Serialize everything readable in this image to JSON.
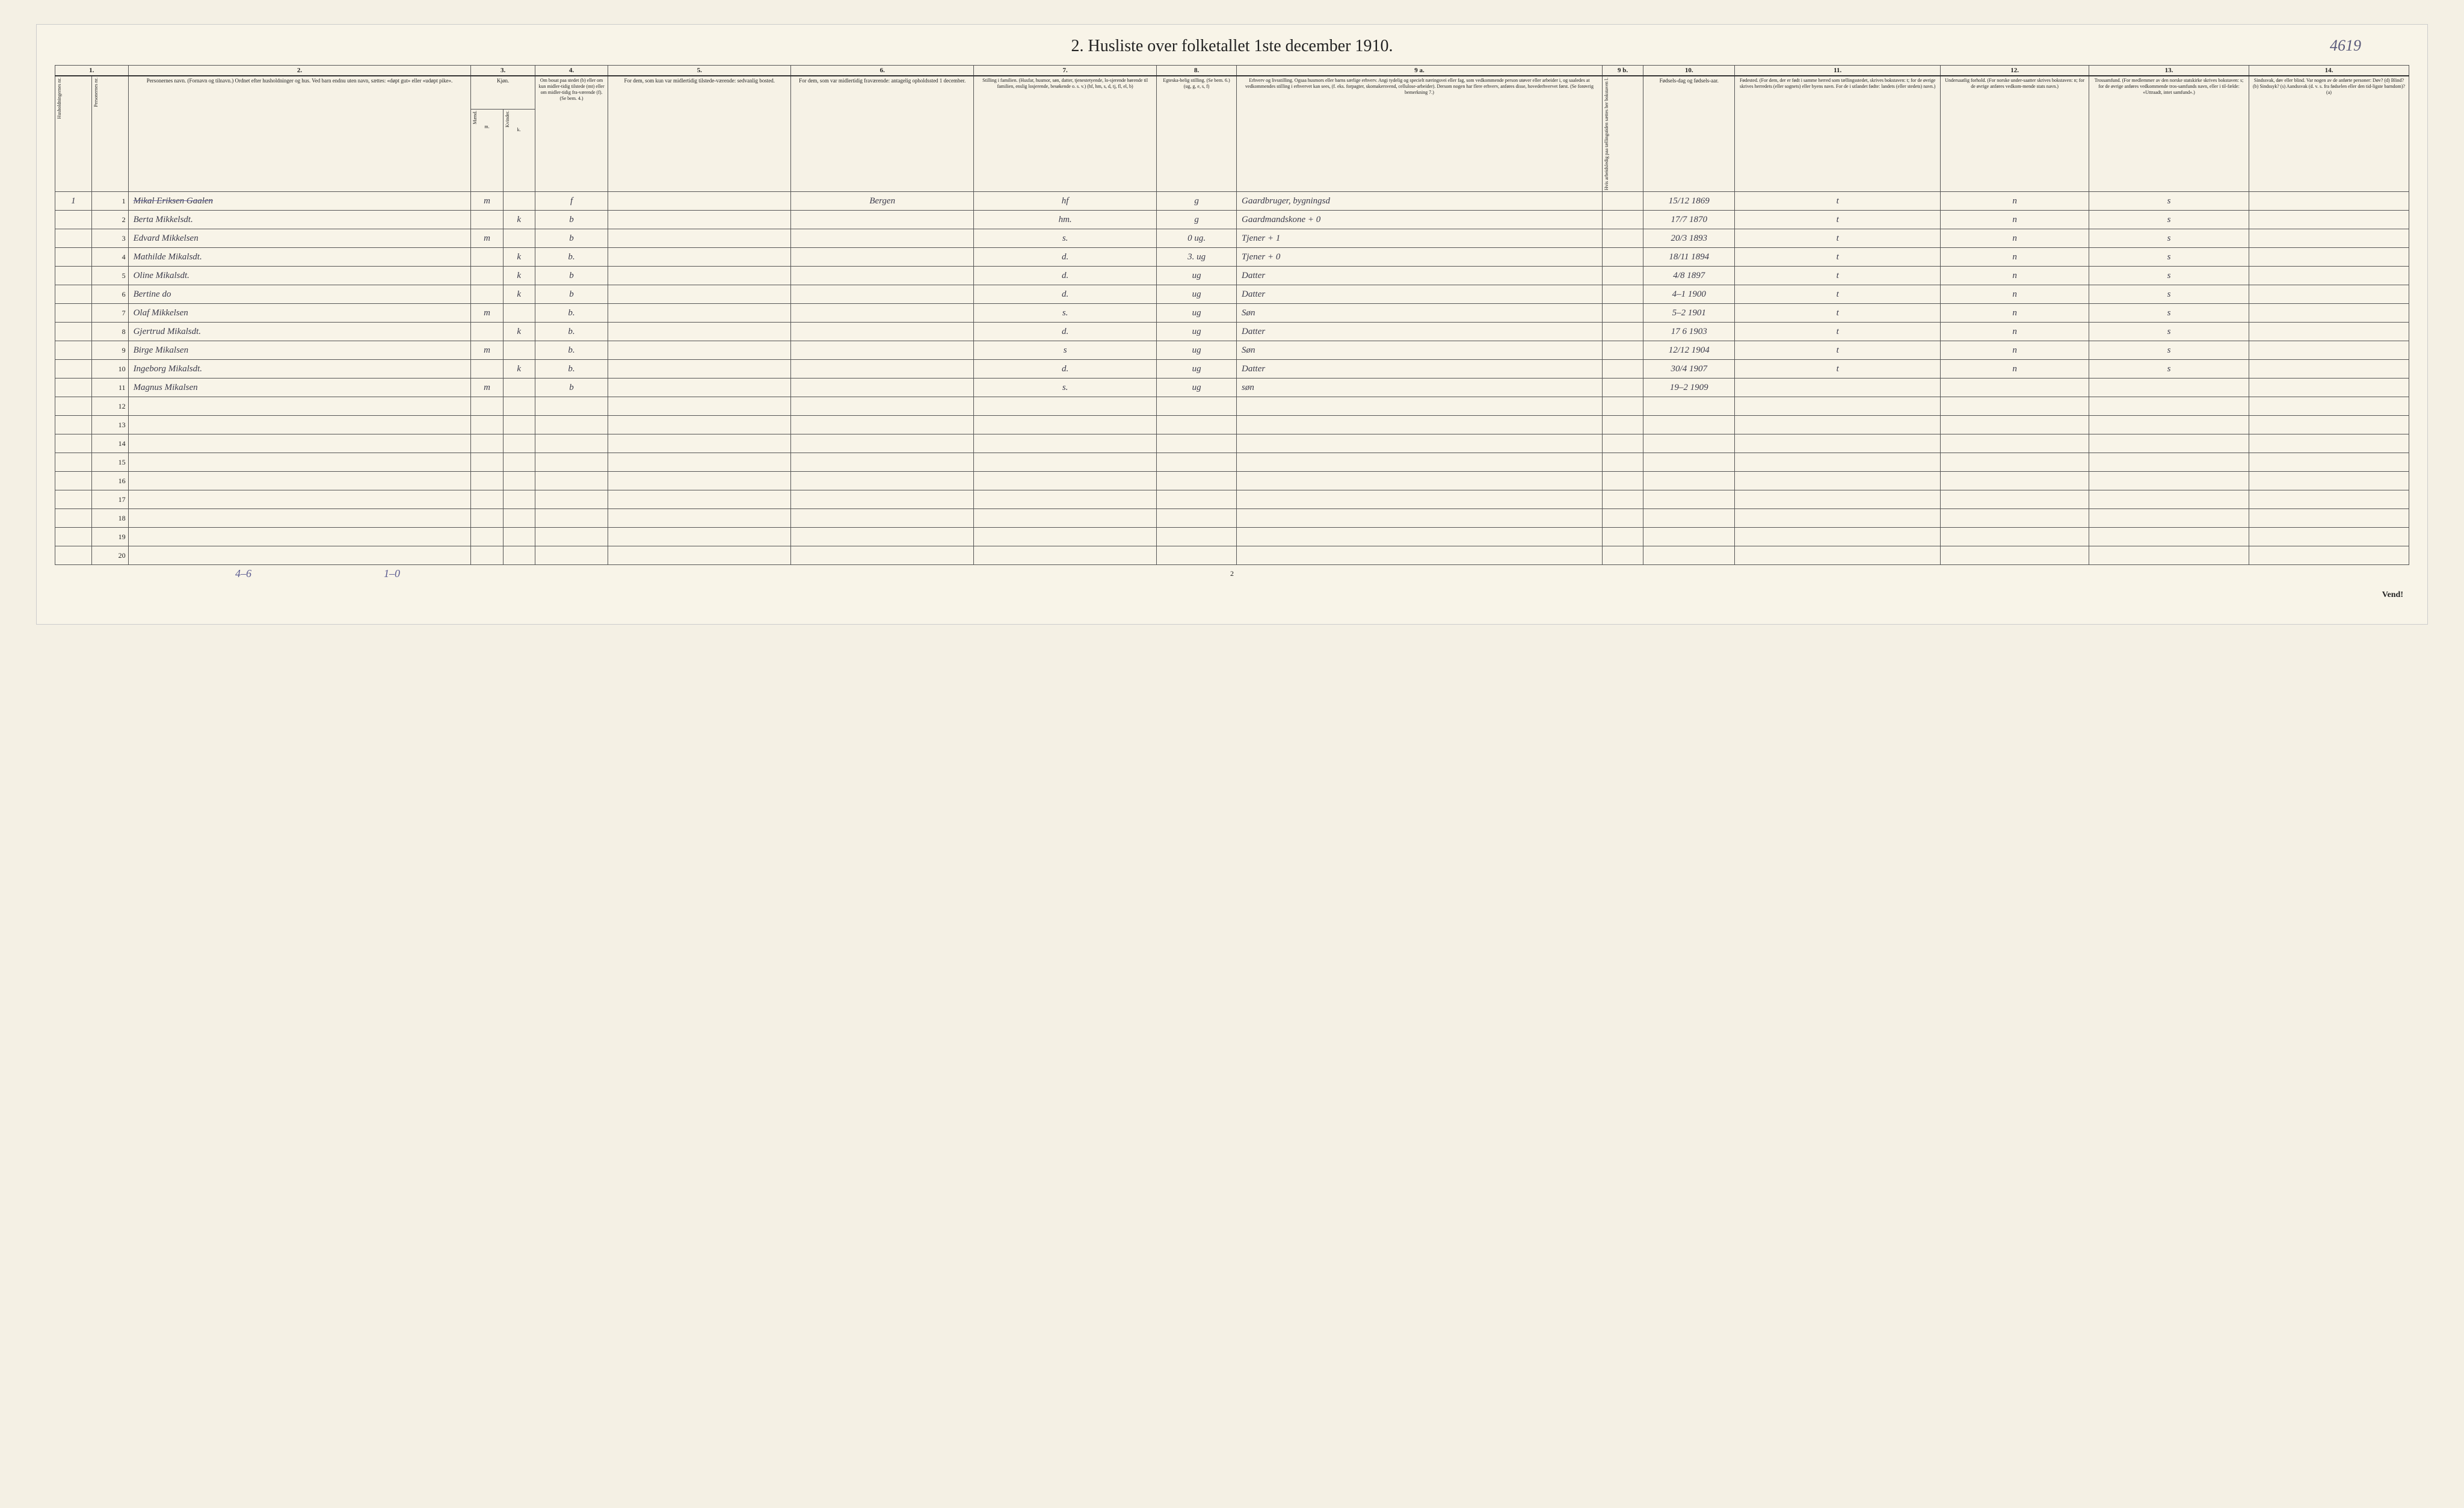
{
  "title": "2.  Husliste over folketallet 1ste december 1910.",
  "page_reference": "4619",
  "footer_left": "4–6",
  "footer_right": "1–0",
  "page_number": "2",
  "vend": "Vend!",
  "columns": {
    "c1": "1.",
    "c2": "2.",
    "c3": "3.",
    "c4": "4.",
    "c5": "5.",
    "c6": "6.",
    "c7": "7.",
    "c8": "8.",
    "c9a": "9 a.",
    "c9b": "9 b.",
    "c10": "10.",
    "c11": "11.",
    "c12": "12.",
    "c13": "13.",
    "c14": "14."
  },
  "headers": {
    "hh_nr": "Husholdningernes nr.",
    "person_nr": "Personernes nr.",
    "names": "Personernes navn.\n(Fornavn og tilnavn.)\nOrdnet efter husholdninger og hus.\nVed barn endnu uten navn, sættes: «døpt gut» eller «udøpt pike».",
    "sex": "Kjøn.",
    "sex_m": "Mænd.",
    "sex_k": "Kvinder.",
    "sex_sub": "m.  k.",
    "residence": "Om bosat paa stedet (b) eller om kun midler-tidig tilstede (mt) eller om midler-tidig fra-værende (f).\n(Se bem. 4.)",
    "temp_present": "For dem, som kun var midlertidig tilstede-værende:\nsedvanlig bosted.",
    "temp_absent": "For dem, som var midlertidig fraværende:\nantagelig opholdssted 1 december.",
    "family_pos": "Stilling i familien.\n(Husfar, husmor, søn, datter, tjenestetyende, lo-sjerende hørende til familien, enslig losjerende, besøkende o. s. v.)\n(hf, hm, s, d, tj, fl, el, b)",
    "marital": "Egteska-belig stilling.\n(Se bem. 6.)\n(ug, g, e, s, f)",
    "occupation": "Erhverv og livsstilling.\nOgsaa husmors eller barns særlige erhverv.\nAngi tydelig og specielt næringsvei eller fag, som vedkommende person utøver eller arbeider i, og saaledes at vedkommendes stilling i erhvervet kan sees, (f. eks. forpagter, skomakersvend, cellulose-arbeider). Dersom nogen har flere erhverv, anføres disse, hovederhvervet først.\n(Se forøvrig bemerkning 7.)",
    "c9b_head": "Hvis arbeidsledig paa tællingstiden sættes her bokstaven l.",
    "birthdate": "Fødsels-dag og fødsels-aar.",
    "birthplace": "Fødested.\n(For dem, der er født i samme herred som tællingsstedet, skrives bokstaven: t; for de øvrige skrives herredets (eller sognets) eller byens navn. For de i utlandet fødte: landets (eller stedets) navn.)",
    "nationality": "Undersaatlig forhold.\n(For norske under-saatter skrives bokstaven: n; for de øvrige anføres vedkom-mende stats navn.)",
    "religion": "Trossamfund.\n(For medlemmer av den norske statskirke skrives bokstaven: s; for de øvrige anføres vedkommende tros-samfunds navn, eller i til-fælde: «Uttraadt, intet samfund».)",
    "disability": "Sindssvak, døv eller blind.\nVar nogen av de anførte personer:\nDøv? (d)\nBlind? (b)\nSindssyk? (s)\nAandssvak (d. v. s. fra fødselen eller den tid-ligste barndom)? (a)"
  },
  "rows": [
    {
      "hh": "1",
      "nr": "1",
      "name": "Mikal Eriksen Gaalen",
      "m": "m",
      "k": "",
      "res": "f",
      "temp_pres": "",
      "temp_abs": "Bergen",
      "fam": "hf",
      "mar": "g",
      "occ": "Gaardbruger, bygningsd",
      "c9b": "",
      "birth": "15/12 1869",
      "bplace": "t",
      "nat": "n",
      "rel": "s",
      "dis": "",
      "strike": true
    },
    {
      "hh": "",
      "nr": "2",
      "name": "Berta Mikkelsdt.",
      "m": "",
      "k": "k",
      "res": "b",
      "temp_pres": "",
      "temp_abs": "",
      "fam": "hm.",
      "mar": "g",
      "occ": "Gaardmandskone + 0",
      "c9b": "",
      "birth": "17/7 1870",
      "bplace": "t",
      "nat": "n",
      "rel": "s",
      "dis": ""
    },
    {
      "hh": "",
      "nr": "3",
      "name": "Edvard Mikkelsen",
      "m": "m",
      "k": "",
      "res": "b",
      "temp_pres": "",
      "temp_abs": "",
      "fam": "s.",
      "mar": "0 ug.",
      "occ": "Tjener + 1",
      "c9b": "",
      "birth": "20/3 1893",
      "bplace": "t",
      "nat": "n",
      "rel": "s",
      "dis": ""
    },
    {
      "hh": "",
      "nr": "4",
      "name": "Mathilde Mikalsdt.",
      "m": "",
      "k": "k",
      "res": "b.",
      "temp_pres": "",
      "temp_abs": "",
      "fam": "d.",
      "mar": "3. ug",
      "occ": "Tjener + 0",
      "c9b": "",
      "birth": "18/11 1894",
      "bplace": "t",
      "nat": "n",
      "rel": "s",
      "dis": ""
    },
    {
      "hh": "",
      "nr": "5",
      "name": "Oline Mikalsdt.",
      "m": "",
      "k": "k",
      "res": "b",
      "temp_pres": "",
      "temp_abs": "",
      "fam": "d.",
      "mar": "ug",
      "occ": "Datter",
      "c9b": "",
      "birth": "4/8 1897",
      "bplace": "t",
      "nat": "n",
      "rel": "s",
      "dis": ""
    },
    {
      "hh": "",
      "nr": "6",
      "name": "Bertine   do",
      "m": "",
      "k": "k",
      "res": "b",
      "temp_pres": "",
      "temp_abs": "",
      "fam": "d.",
      "mar": "ug",
      "occ": "Datter",
      "c9b": "",
      "birth": "4–1 1900",
      "bplace": "t",
      "nat": "n",
      "rel": "s",
      "dis": ""
    },
    {
      "hh": "",
      "nr": "7",
      "name": "Olaf Mikkelsen",
      "m": "m",
      "k": "",
      "res": "b.",
      "temp_pres": "",
      "temp_abs": "",
      "fam": "s.",
      "mar": "ug",
      "occ": "Søn",
      "c9b": "",
      "birth": "5–2 1901",
      "bplace": "t",
      "nat": "n",
      "rel": "s",
      "dis": ""
    },
    {
      "hh": "",
      "nr": "8",
      "name": "Gjertrud Mikalsdt.",
      "m": "",
      "k": "k",
      "res": "b.",
      "temp_pres": "",
      "temp_abs": "",
      "fam": "d.",
      "mar": "ug",
      "occ": "Datter",
      "c9b": "",
      "birth": "17 6 1903",
      "bplace": "t",
      "nat": "n",
      "rel": "s",
      "dis": ""
    },
    {
      "hh": "",
      "nr": "9",
      "name": "Birge Mikalsen",
      "m": "m",
      "k": "",
      "res": "b.",
      "temp_pres": "",
      "temp_abs": "",
      "fam": "s",
      "mar": "ug",
      "occ": "Søn",
      "c9b": "",
      "birth": "12/12 1904",
      "bplace": "t",
      "nat": "n",
      "rel": "s",
      "dis": ""
    },
    {
      "hh": "",
      "nr": "10",
      "name": "Ingeborg Mikalsdt.",
      "m": "",
      "k": "k",
      "res": "b.",
      "temp_pres": "",
      "temp_abs": "",
      "fam": "d.",
      "mar": "ug",
      "occ": "Datter",
      "c9b": "",
      "birth": "30/4 1907",
      "bplace": "t",
      "nat": "n",
      "rel": "s",
      "dis": ""
    },
    {
      "hh": "",
      "nr": "11",
      "name": "Magnus Mikalsen",
      "m": "m",
      "k": "",
      "res": "b",
      "temp_pres": "",
      "temp_abs": "",
      "fam": "s.",
      "mar": "ug",
      "occ": "søn",
      "c9b": "",
      "birth": "19–2 1909",
      "bplace": "",
      "nat": "",
      "rel": "",
      "dis": ""
    }
  ],
  "empty_rows": [
    "12",
    "13",
    "14",
    "15",
    "16",
    "17",
    "18",
    "19",
    "20"
  ],
  "col_widths": {
    "hh": "1.6%",
    "pn": "1.6%",
    "name": "15%",
    "m": "1.4%",
    "k": "1.4%",
    "res": "3.2%",
    "tpres": "8%",
    "tabs": "8%",
    "fam": "8%",
    "mar": "3.5%",
    "occ": "16%",
    "c9b": "1.8%",
    "birth": "4%",
    "bplace": "9%",
    "nat": "6.5%",
    "rel": "7%",
    "dis": "7%"
  },
  "colors": {
    "paper": "#f8f4e8",
    "ink": "#222222",
    "handwriting": "#3a3a4a",
    "pencil_blue": "#5a5a90",
    "border": "#555555"
  }
}
